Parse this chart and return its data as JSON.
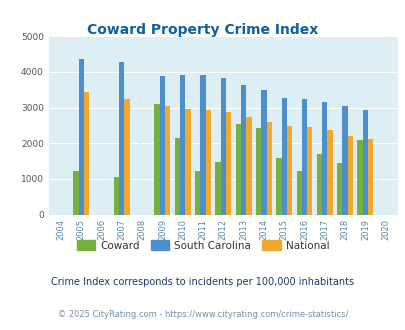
{
  "title": "Coward Property Crime Index",
  "years": [
    2004,
    2005,
    2006,
    2007,
    2008,
    2009,
    2010,
    2011,
    2012,
    2013,
    2014,
    2015,
    2016,
    2017,
    2018,
    2019,
    2020
  ],
  "coward": [
    0,
    1220,
    0,
    1050,
    0,
    3100,
    2160,
    1220,
    1460,
    2550,
    2430,
    1590,
    1220,
    1700,
    1450,
    2080,
    0
  ],
  "south_carolina": [
    0,
    4370,
    0,
    4280,
    0,
    3900,
    3920,
    3920,
    3840,
    3640,
    3480,
    3280,
    3240,
    3160,
    3040,
    2940,
    0
  ],
  "national": [
    0,
    3440,
    0,
    3240,
    0,
    3040,
    2950,
    2930,
    2880,
    2730,
    2600,
    2490,
    2460,
    2360,
    2200,
    2130,
    0
  ],
  "coward_color": "#76b041",
  "sc_color": "#4d8fcc",
  "national_color": "#f0a830",
  "bg_color": "#ddeef5",
  "title_color": "#1060a0",
  "ylim": [
    0,
    5000
  ],
  "yticks": [
    0,
    1000,
    2000,
    3000,
    4000,
    5000
  ],
  "note": "Crime Index corresponds to incidents per 100,000 inhabitants",
  "footer": "© 2025 CityRating.com - https://www.cityrating.com/crime-statistics/",
  "note_color": "#1a3a6a",
  "footer_color": "#7090b0"
}
